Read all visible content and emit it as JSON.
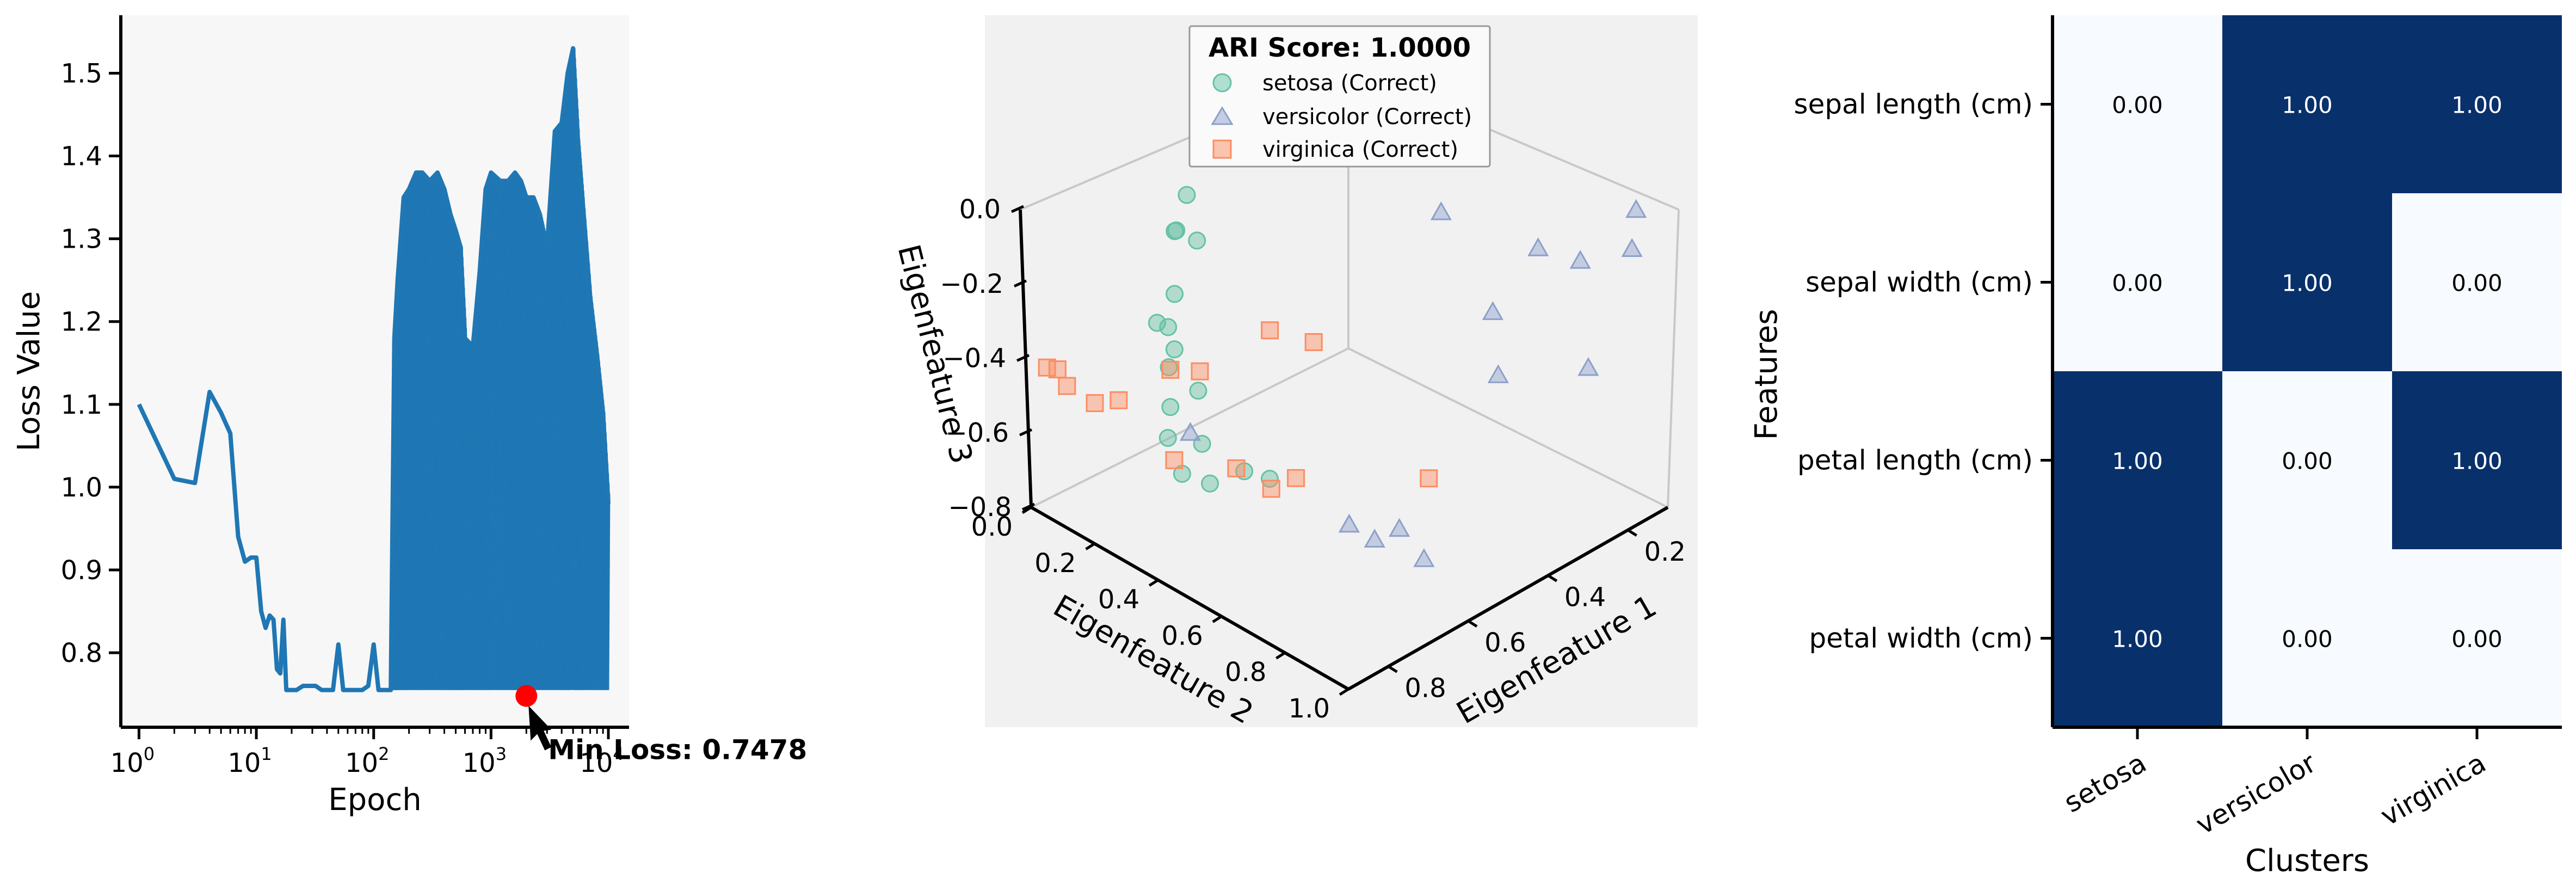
{
  "chart_data": [
    {
      "type": "line",
      "xlabel": "Epoch",
      "ylabel": "Loss Value",
      "xscale": "log",
      "xlim": [
        0.7,
        15000
      ],
      "ylim": [
        0.71,
        1.57
      ],
      "xticks": [
        {
          "value": 1,
          "base": "10",
          "exp": "0"
        },
        {
          "value": 10,
          "base": "10",
          "exp": "1"
        },
        {
          "value": 100,
          "base": "10",
          "exp": "2"
        },
        {
          "value": 1000,
          "base": "10",
          "exp": "3"
        },
        {
          "value": 10000,
          "base": "10",
          "exp": "4"
        }
      ],
      "yticks": [
        {
          "value": 0.8,
          "label": "0.8"
        },
        {
          "value": 0.9,
          "label": "0.9"
        },
        {
          "value": 1.0,
          "label": "1.0"
        },
        {
          "value": 1.1,
          "label": "1.1"
        },
        {
          "value": 1.2,
          "label": "1.2"
        },
        {
          "value": 1.3,
          "label": "1.3"
        },
        {
          "value": 1.4,
          "label": "1.4"
        },
        {
          "value": 1.5,
          "label": "1.5"
        }
      ],
      "series": [
        {
          "color": "#1f77b4",
          "x": [
            1,
            2,
            3,
            4,
            5,
            6,
            7,
            8,
            9,
            10,
            11,
            12,
            13,
            14,
            15,
            16,
            17,
            18,
            19,
            20,
            22,
            25,
            28,
            32,
            36,
            40,
            45,
            50,
            55,
            60,
            65,
            70,
            75,
            80,
            90,
            100,
            110,
            120,
            130,
            140,
            150,
            160,
            180,
            200,
            230,
            260,
            300,
            350,
            400,
            450,
            500,
            550,
            600,
            700,
            800,
            900,
            1000,
            1200,
            1400,
            1600,
            1800,
            2000,
            2300,
            2600,
            3000,
            3500,
            4000,
            4500,
            5000,
            5500,
            6000,
            7000,
            8000,
            9000,
            10000
          ],
          "y": [
            1.1,
            1.01,
            1.005,
            1.115,
            1.09,
            1.065,
            0.94,
            0.91,
            0.915,
            0.915,
            0.85,
            0.83,
            0.845,
            0.84,
            0.78,
            0.775,
            0.84,
            0.755,
            0.755,
            0.755,
            0.755,
            0.76,
            0.76,
            0.76,
            0.755,
            0.755,
            0.755,
            0.81,
            0.755,
            0.755,
            0.755,
            0.755,
            0.755,
            0.755,
            0.76,
            0.81,
            0.755,
            0.755,
            0.755,
            0.755,
            1.18,
            1.25,
            1.35,
            1.36,
            1.38,
            1.38,
            1.37,
            1.38,
            1.36,
            1.33,
            1.31,
            1.29,
            1.18,
            1.17,
            1.26,
            1.36,
            1.38,
            1.37,
            1.37,
            1.38,
            1.37,
            1.35,
            1.35,
            1.33,
            1.29,
            1.43,
            1.44,
            1.5,
            1.53,
            1.42,
            1.35,
            1.23,
            1.16,
            1.09,
            0.98
          ],
          "band_floor": 0.755
        }
      ],
      "annotations": [
        {
          "text": "Min Loss: 0.7478",
          "x": 2000,
          "y": 0.7478,
          "color": "#ff0000"
        }
      ]
    },
    {
      "type": "scatter3d",
      "title": "ARI Score: 1.0000",
      "xlabel": "Eigenfeature 1",
      "ylabel": "Eigenfeature 2",
      "zlabel": "Eigenfeature 3",
      "xticks": [
        "0.2",
        "0.4",
        "0.6",
        "0.8"
      ],
      "yticks": [
        "0.0",
        "0.2",
        "0.4",
        "0.6",
        "0.8",
        "1.0"
      ],
      "zticks": [
        "0.0",
        "−0.2",
        "−0.4",
        "−0.6",
        "−0.8"
      ],
      "legend_position": "top-center",
      "series": [
        {
          "name": "setosa (Correct)",
          "marker": "circle",
          "color": "#66c2a5",
          "points": [
            [
              0.2,
              0.45,
              -0.05
            ],
            [
              0.55,
              0.05,
              -0.15
            ],
            [
              0.6,
              0.08,
              -0.2
            ],
            [
              0.58,
              0.12,
              -0.22
            ],
            [
              0.62,
              0.1,
              -0.18
            ],
            [
              0.66,
              0.15,
              -0.3
            ],
            [
              0.7,
              0.18,
              -0.35
            ],
            [
              0.7,
              0.2,
              -0.4
            ],
            [
              0.73,
              0.22,
              -0.42
            ],
            [
              0.68,
              0.12,
              -0.38
            ],
            [
              0.75,
              0.25,
              -0.5
            ],
            [
              0.72,
              0.3,
              -0.45
            ],
            [
              0.78,
              0.28,
              -0.55
            ],
            [
              0.75,
              0.35,
              -0.55
            ],
            [
              0.8,
              0.35,
              -0.6
            ],
            [
              0.77,
              0.4,
              -0.62
            ],
            [
              0.7,
              0.42,
              -0.62
            ],
            [
              0.66,
              0.45,
              -0.65
            ]
          ]
        },
        {
          "name": "versicolor (Correct)",
          "marker": "triangle",
          "color": "#8da0cb",
          "points": [
            [
              0.1,
              0.9,
              -0.05
            ],
            [
              0.15,
              0.95,
              -0.1
            ],
            [
              0.25,
              0.78,
              -0.12
            ],
            [
              0.2,
              0.85,
              -0.15
            ],
            [
              0.3,
              0.7,
              -0.3
            ],
            [
              0.35,
              0.78,
              -0.4
            ],
            [
              0.18,
              0.85,
              -0.45
            ],
            [
              0.35,
              0.6,
              -0.05
            ],
            [
              0.7,
              0.25,
              -0.6
            ],
            [
              0.62,
              0.65,
              -0.7
            ],
            [
              0.58,
              0.68,
              -0.75
            ],
            [
              0.55,
              0.72,
              -0.72
            ],
            [
              0.52,
              0.76,
              -0.8
            ]
          ]
        },
        {
          "name": "virginica (Correct)",
          "marker": "square",
          "color": "#fc8d62",
          "points": [
            [
              0.85,
              0.02,
              -0.45
            ],
            [
              0.85,
              0.05,
              -0.48
            ],
            [
              0.82,
              0.1,
              -0.52
            ],
            [
              0.8,
              0.15,
              -0.5
            ],
            [
              0.75,
              0.25,
              -0.4
            ],
            [
              0.7,
              0.28,
              -0.42
            ],
            [
              0.78,
              0.3,
              -0.6
            ],
            [
              0.72,
              0.42,
              -0.6
            ],
            [
              0.68,
              0.48,
              -0.65
            ],
            [
              0.62,
              0.4,
              -0.3
            ],
            [
              0.55,
              0.45,
              -0.35
            ],
            [
              0.5,
              0.75,
              -0.6
            ],
            [
              0.65,
              0.52,
              -0.62
            ],
            [
              0.9,
              0.05,
              -0.4
            ]
          ]
        }
      ]
    },
    {
      "type": "heatmap",
      "xlabel": "Clusters",
      "ylabel": "Features",
      "columns": [
        "setosa",
        "versicolor",
        "virginica"
      ],
      "rows": [
        "sepal length (cm)",
        "sepal width (cm)",
        "petal length (cm)",
        "petal width (cm)"
      ],
      "cells": [
        [
          {
            "value": 0,
            "label": "0.00"
          },
          {
            "value": 1,
            "label": "1.00"
          },
          {
            "value": 1,
            "label": "1.00"
          }
        ],
        [
          {
            "value": 0,
            "label": "0.00"
          },
          {
            "value": 1,
            "label": "1.00"
          },
          {
            "value": 0,
            "label": "0.00"
          }
        ],
        [
          {
            "value": 1,
            "label": "1.00"
          },
          {
            "value": 0,
            "label": "0.00"
          },
          {
            "value": 1,
            "label": "1.00"
          }
        ],
        [
          {
            "value": 1,
            "label": "1.00"
          },
          {
            "value": 0,
            "label": "0.00"
          },
          {
            "value": 0,
            "label": "0.00"
          }
        ]
      ],
      "colormap": {
        "low": "#f7fbff",
        "high": "#08306b"
      }
    }
  ]
}
